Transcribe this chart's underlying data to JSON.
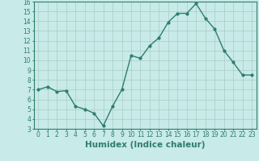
{
  "x": [
    0,
    1,
    2,
    3,
    4,
    5,
    6,
    7,
    8,
    9,
    10,
    11,
    12,
    13,
    14,
    15,
    16,
    17,
    18,
    19,
    20,
    21,
    22,
    23
  ],
  "y": [
    7.0,
    7.3,
    6.8,
    6.9,
    5.3,
    5.0,
    4.6,
    3.3,
    5.3,
    7.0,
    10.5,
    10.2,
    11.5,
    12.3,
    13.9,
    14.8,
    14.8,
    15.8,
    14.3,
    13.2,
    11.0,
    9.8,
    8.5,
    8.5
  ],
  "line_color": "#2e7d6e",
  "marker": "o",
  "marker_size": 2.0,
  "linewidth": 1.0,
  "bg_color": "#c8eae8",
  "grid_color": "#a8ccc8",
  "xlabel": "Humidex (Indice chaleur)",
  "xlim": [
    -0.5,
    23.5
  ],
  "ylim": [
    3,
    16
  ],
  "yticks": [
    3,
    4,
    5,
    6,
    7,
    8,
    9,
    10,
    11,
    12,
    13,
    14,
    15,
    16
  ],
  "xtick_labels": [
    "0",
    "1",
    "2",
    "3",
    "4",
    "5",
    "6",
    "7",
    "8",
    "9",
    "10",
    "11",
    "12",
    "13",
    "14",
    "15",
    "16",
    "17",
    "18",
    "19",
    "20",
    "21",
    "22",
    "23"
  ],
  "tick_color": "#2e7d6e",
  "label_color": "#2e7d6e",
  "tick_fontsize": 5.5,
  "xlabel_fontsize": 7.5
}
